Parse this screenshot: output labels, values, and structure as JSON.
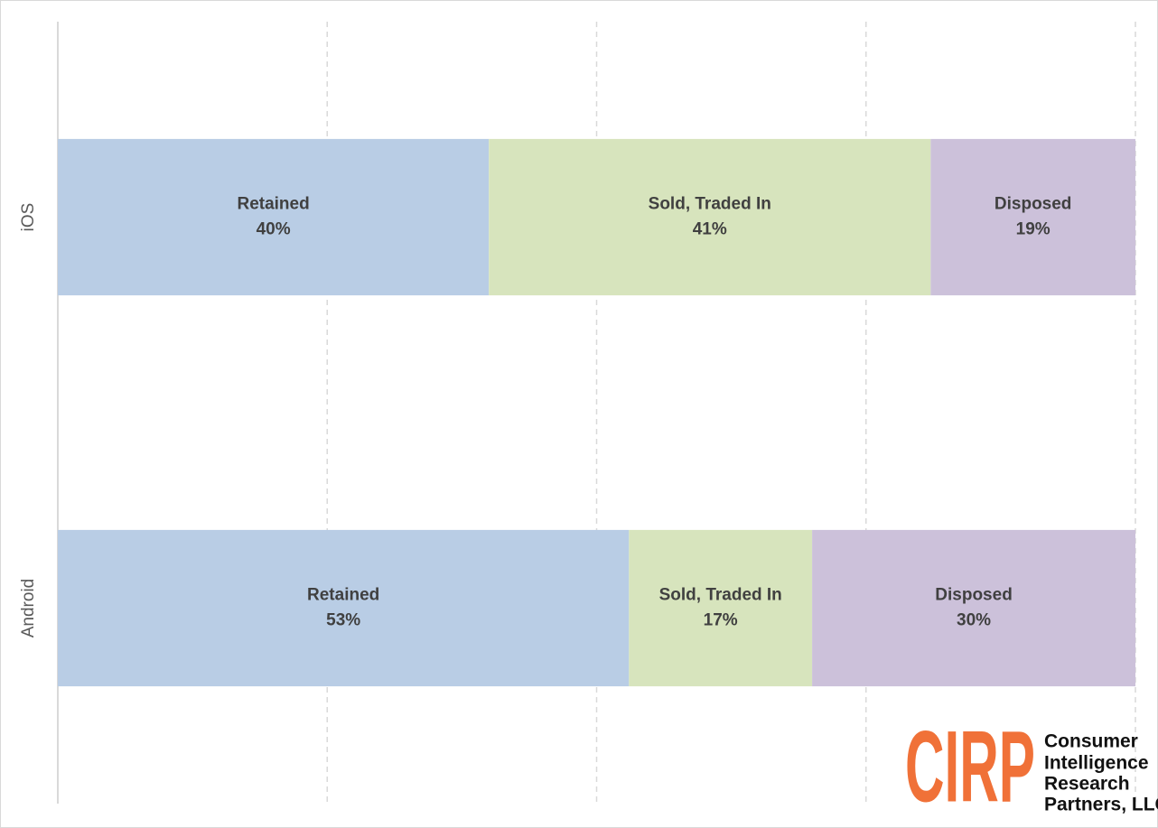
{
  "chart_data": {
    "type": "stacked_barh",
    "categories": [
      "iOS",
      "Android"
    ],
    "series": [
      {
        "name": "Retained",
        "color": "#b9cde5",
        "values": [
          40,
          53
        ],
        "value_labels": [
          "40%",
          "53%"
        ]
      },
      {
        "name": "Sold, Traded In",
        "color": "#d7e4bd",
        "values": [
          41,
          17
        ],
        "value_labels": [
          "41%",
          "17%"
        ]
      },
      {
        "name": "Disposed",
        "color": "#ccc1da",
        "values": [
          19,
          30
        ],
        "value_labels": [
          "19%",
          "30%"
        ]
      }
    ],
    "xlim": [
      0,
      100
    ],
    "xticks": [
      0,
      25,
      50,
      75,
      100
    ],
    "grid": true
  },
  "logo": {
    "mark": "CIRP",
    "lines": [
      "Consumer",
      "Intelligence",
      "Research",
      "Partners, LLC"
    ]
  }
}
